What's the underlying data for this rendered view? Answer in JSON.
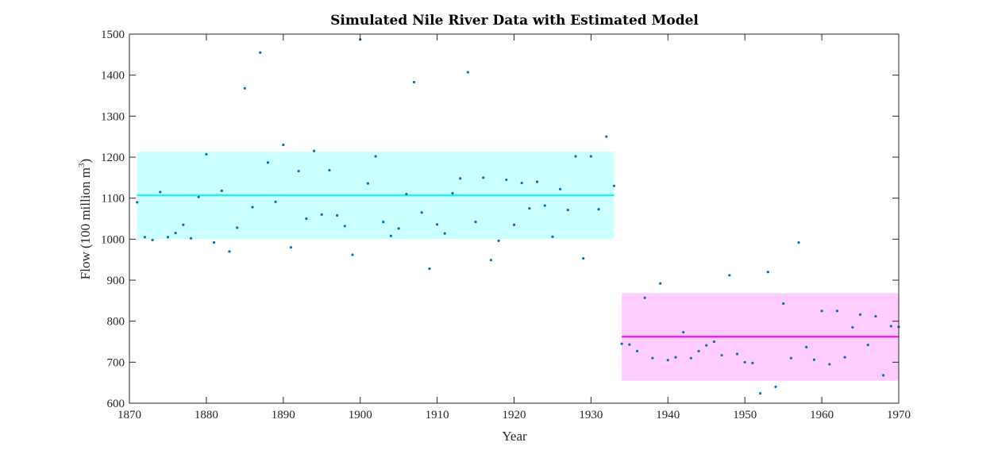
{
  "chart_data": {
    "type": "scatter",
    "title": "Simulated Nile River Data with Estimated Model",
    "xlabel": "Year",
    "ylabel_main": "Flow (100 million m",
    "ylabel_sup": "3",
    "ylabel_end": ")",
    "xlim": [
      1870,
      1970
    ],
    "ylim": [
      600,
      1500
    ],
    "x_ticks": [
      1870,
      1880,
      1890,
      1900,
      1910,
      1920,
      1930,
      1940,
      1950,
      1960,
      1970
    ],
    "y_ticks": [
      600,
      700,
      800,
      900,
      1000,
      1100,
      1200,
      1300,
      1400,
      1500
    ],
    "grid": false,
    "colors": {
      "points": "#0072bd",
      "band1_fill": "#ccffff",
      "band1_line": "#00ffff",
      "band2_fill": "#ffccff",
      "band2_line": "#ff00ff"
    },
    "series": [
      {
        "x": [
          1871,
          1872,
          1873,
          1874,
          1875,
          1876,
          1877,
          1878,
          1879,
          1880,
          1881,
          1882,
          1883,
          1884,
          1885,
          1886,
          1887,
          1888,
          1889,
          1890,
          1891,
          1892,
          1893,
          1894,
          1895,
          1896,
          1897,
          1898,
          1899,
          1900,
          1901,
          1902,
          1903,
          1904,
          1905,
          1906,
          1907,
          1908,
          1909,
          1910,
          1911,
          1912,
          1913,
          1914,
          1915,
          1916,
          1917,
          1918,
          1919,
          1920,
          1921,
          1922,
          1923,
          1924,
          1925,
          1926,
          1927,
          1928,
          1929,
          1930,
          1931,
          1932,
          1933,
          1934,
          1935,
          1936,
          1937,
          1938,
          1939,
          1940,
          1941,
          1942,
          1943,
          1944,
          1945,
          1946,
          1947,
          1948,
          1949,
          1950,
          1951,
          1952,
          1953,
          1954,
          1955,
          1956,
          1957,
          1958,
          1959,
          1960,
          1961,
          1962,
          1963,
          1964,
          1965,
          1966,
          1967,
          1968,
          1969,
          1970
        ],
        "y": [
          1090,
          1005,
          998,
          1115,
          1005,
          1015,
          1035,
          1002,
          1103,
          1207,
          992,
          1118,
          970,
          1028,
          1368,
          1078,
          1455,
          1187,
          1091,
          1230,
          980,
          1166,
          1050,
          1215,
          1060,
          1168,
          1058,
          1032,
          962,
          1487,
          1136,
          1202,
          1042,
          1008,
          1026,
          1110,
          1383,
          1065,
          928,
          1036,
          1014,
          1112,
          1148,
          1407,
          1042,
          1150,
          949,
          996,
          1145,
          1035,
          1137,
          1075,
          1140,
          1082,
          1006,
          1122,
          1071,
          1202,
          953,
          1202,
          1073,
          1250,
          1130,
          745,
          743,
          727,
          857,
          710,
          892,
          705,
          712,
          773,
          710,
          727,
          741,
          750,
          717,
          912,
          720,
          700,
          698,
          624,
          920,
          640,
          843,
          710,
          992,
          737,
          706,
          825,
          695,
          825,
          712,
          785,
          816,
          742,
          812,
          668,
          788,
          786
        ]
      }
    ],
    "segments": [
      {
        "x_range": [
          1871,
          1933
        ],
        "mean": 1107,
        "band": [
          1000,
          1213
        ]
      },
      {
        "x_range": [
          1934,
          1970
        ],
        "mean": 762,
        "band": [
          655,
          868
        ]
      }
    ]
  }
}
